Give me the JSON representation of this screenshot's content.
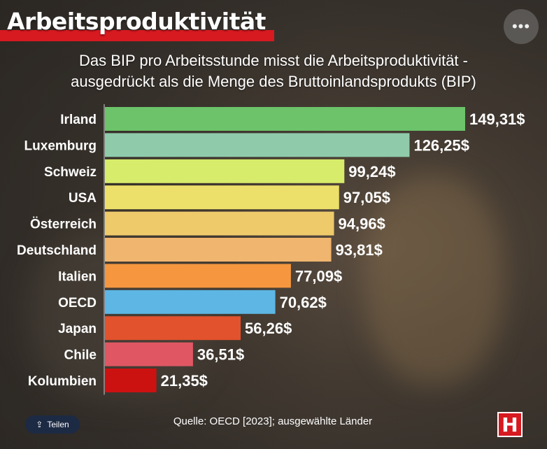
{
  "header": {
    "title": "Arbeitsproduktivität",
    "subtitle_line1": "Das BIP pro Arbeitsstunde misst die Arbeitsproduktivität -",
    "subtitle_line2": "ausgedrückt als die Menge des Bruttoinlandsprodukts (BIP)",
    "more_icon": "more-horizontal-icon"
  },
  "chart_data": {
    "type": "bar",
    "orientation": "horizontal",
    "categories": [
      "Irland",
      "Luxemburg",
      "Schweiz",
      "USA",
      "Österreich",
      "Deutschland",
      "Italien",
      "OECD",
      "Japan",
      "Chile",
      "Kolumbien"
    ],
    "values": [
      149.31,
      126.25,
      99.24,
      97.05,
      94.96,
      93.81,
      77.09,
      70.62,
      56.26,
      36.51,
      21.35
    ],
    "value_labels": [
      "149,31$",
      "126,25$",
      "99,24$",
      "97,05$",
      "94,96$",
      "93,81$",
      "77,09$",
      "70,62$",
      "56,26$",
      "36,51$",
      "21,35$"
    ],
    "colors": [
      "#6cc36a",
      "#8fcbab",
      "#d7ec6a",
      "#ede06a",
      "#efca6b",
      "#f0b56e",
      "#f6973f",
      "#5db6e4",
      "#e2522d",
      "#e05763",
      "#cc1111"
    ],
    "xlim": [
      0,
      150
    ],
    "grid": false
  },
  "footer": {
    "source": "Quelle: OECD [2023];  ausgewählte Länder",
    "share_label": "Teilen",
    "share_icon": "share-icon",
    "logo_letter": "H"
  }
}
